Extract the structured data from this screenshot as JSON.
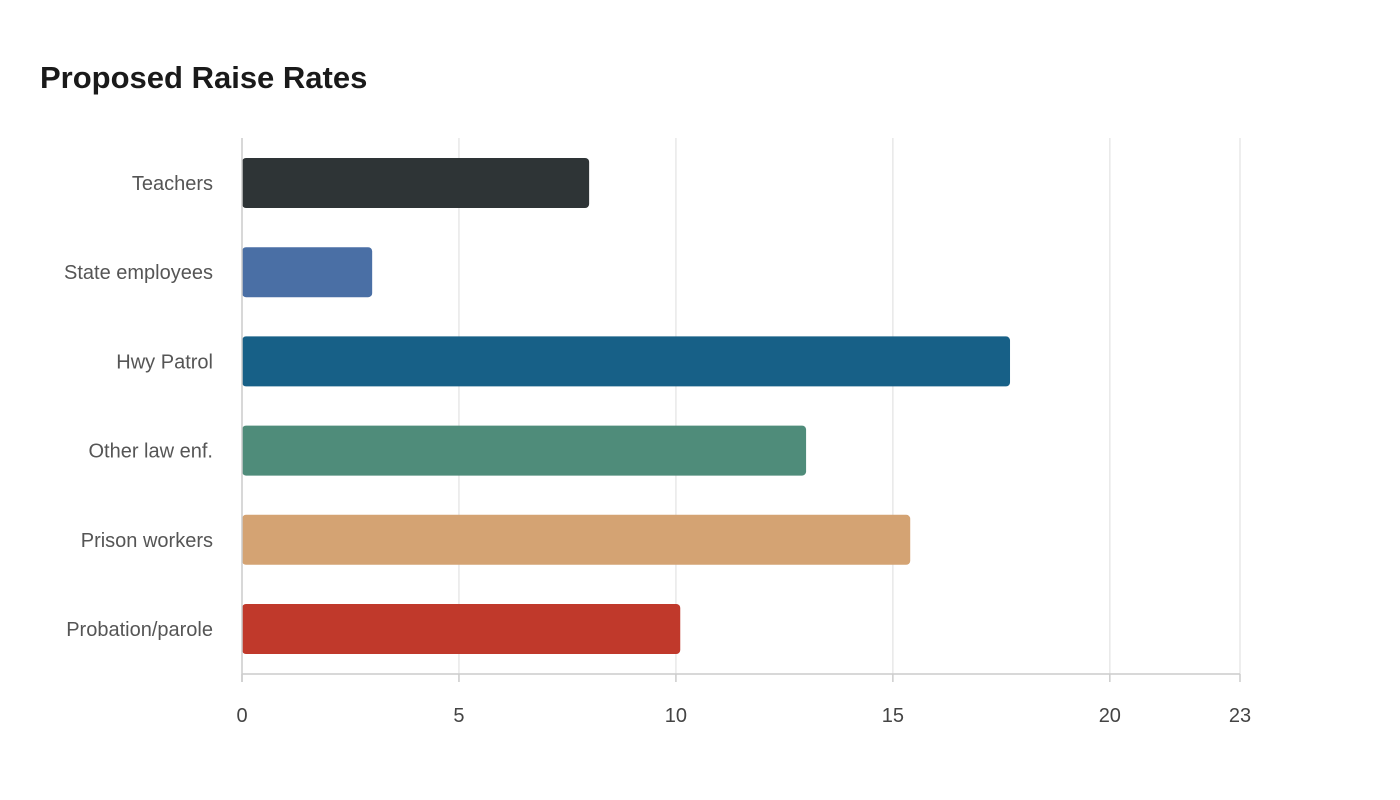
{
  "chart_data": {
    "type": "bar",
    "orientation": "horizontal",
    "title": "Proposed Raise Rates",
    "xlabel": "",
    "ylabel": "",
    "categories": [
      "Teachers",
      "State employees",
      "Hwy Patrol",
      "Other law enf.",
      "Prison workers",
      "Probation/parole"
    ],
    "values": [
      8,
      3,
      17.7,
      13,
      15.4,
      10.1
    ],
    "colors": [
      "#2e3436",
      "#4a6fa5",
      "#176087",
      "#4f8c7a",
      "#d4a373",
      "#c0392b"
    ],
    "xlim": [
      0,
      23
    ],
    "xticks": [
      "0",
      "5",
      "10",
      "15",
      "20",
      "23"
    ],
    "grid": true,
    "legend": "none"
  }
}
